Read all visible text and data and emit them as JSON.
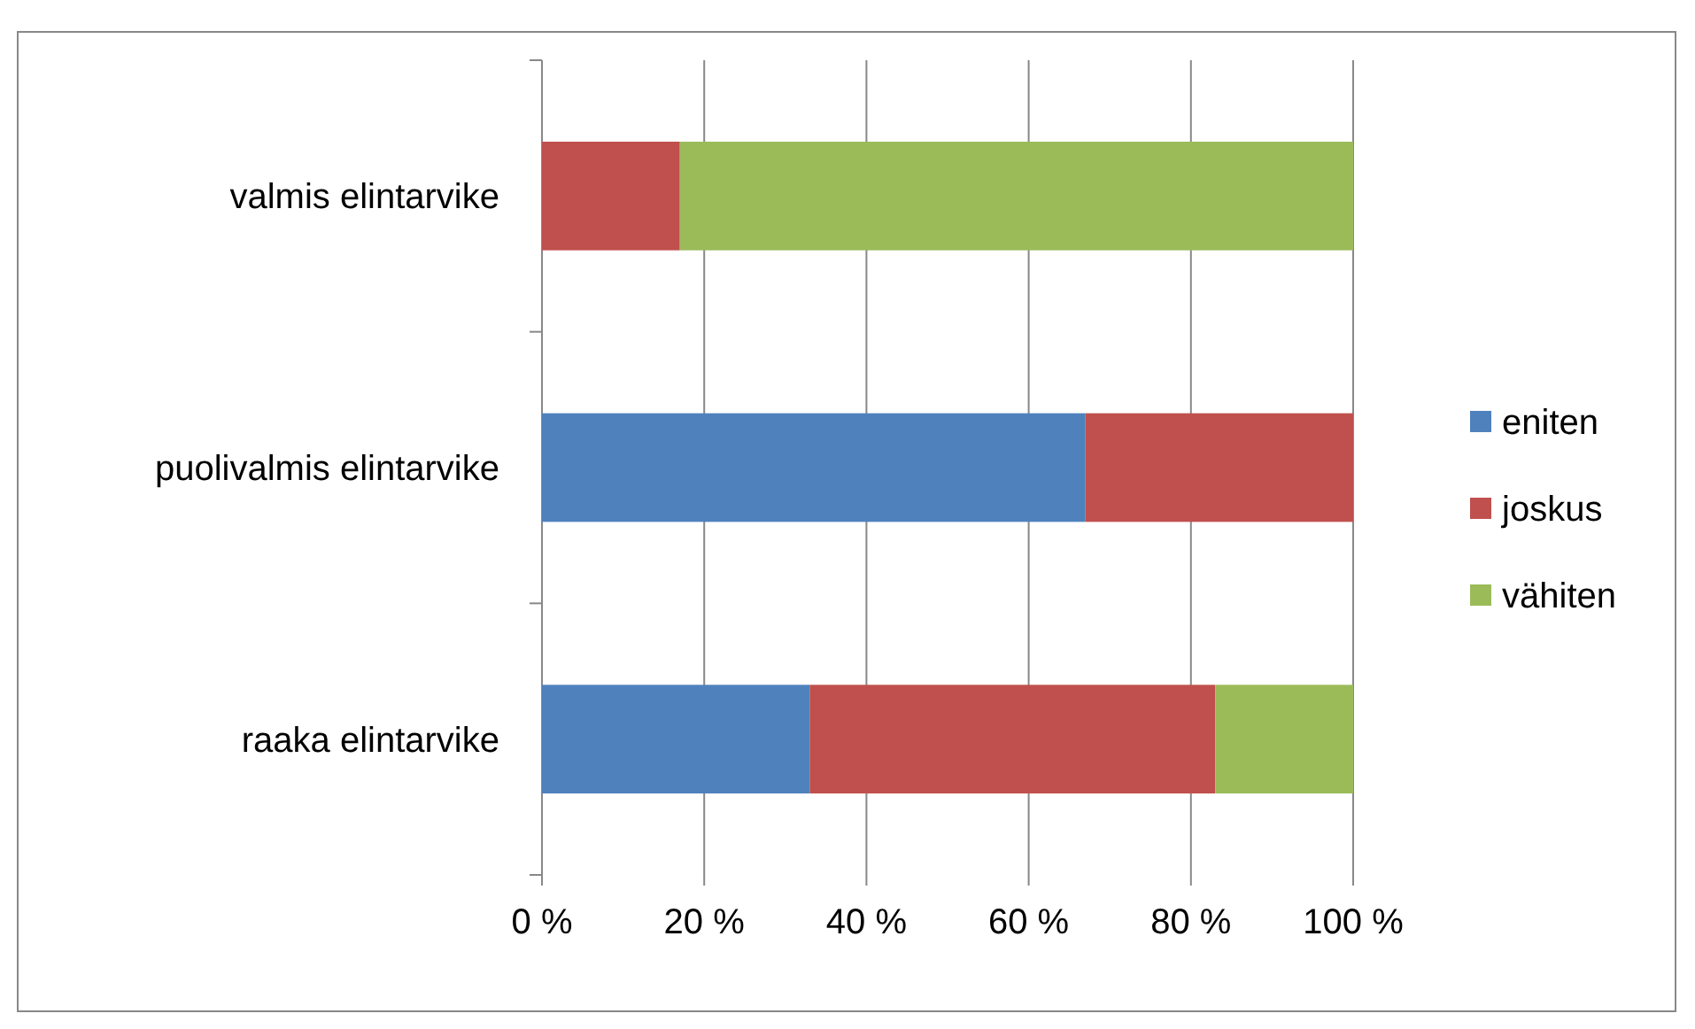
{
  "chart_data": {
    "type": "bar",
    "orientation": "horizontal",
    "stacked": true,
    "categories": [
      "valmis elintarvike",
      "puolivalmis elintarvike",
      "raaka elintarvike"
    ],
    "series": [
      {
        "name": "eniten",
        "color": "#4f81bd",
        "values": [
          0,
          67,
          33
        ]
      },
      {
        "name": "joskus",
        "color": "#c0504d",
        "values": [
          17,
          33,
          50
        ]
      },
      {
        "name": "vähiten",
        "color": "#9bbb59",
        "values": [
          83,
          0,
          17
        ]
      }
    ],
    "xlim": [
      0,
      100
    ],
    "xticks": [
      {
        "value": 0,
        "label": "0 %"
      },
      {
        "value": 20,
        "label": "20 %"
      },
      {
        "value": 40,
        "label": "40 %"
      },
      {
        "value": 60,
        "label": "60 %"
      },
      {
        "value": 80,
        "label": "80 %"
      },
      {
        "value": 100,
        "label": "100 %"
      }
    ],
    "grid": "x",
    "legend": "right"
  }
}
